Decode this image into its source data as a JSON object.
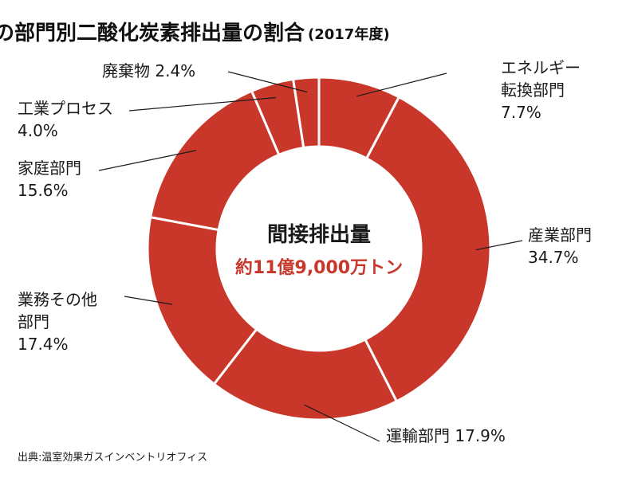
{
  "chart_data": {
    "type": "pie",
    "donut": true,
    "title": "日本の部門別二酸化炭素排出量の割合",
    "subtitle": "(2017年度)",
    "center": {
      "label": "間接排出量",
      "value": "約11億9,000万トン"
    },
    "unit": "%",
    "slices": [
      {
        "name": "エネルギー転換部門",
        "label_lines": [
          "エネルギー",
          "転換部門",
          "7.7%"
        ],
        "value": 7.7
      },
      {
        "name": "産業部門",
        "label_lines": [
          "産業部門",
          "34.7%"
        ],
        "value": 34.7
      },
      {
        "name": "運輸部門",
        "label_lines": [
          "運輸部門 17.9%"
        ],
        "value": 17.9
      },
      {
        "name": "業務その他部門",
        "label_lines": [
          "業務その他",
          "部門",
          "17.4%"
        ],
        "value": 17.4
      },
      {
        "name": "家庭部門",
        "label_lines": [
          "家庭部門",
          "15.6%"
        ],
        "value": 15.6
      },
      {
        "name": "工業プロセス",
        "label_lines": [
          "工業プロセス",
          "4.0%"
        ],
        "value": 4.0
      },
      {
        "name": "廃棄物",
        "label_lines": [
          "廃棄物  2.4%"
        ],
        "value": 2.4
      }
    ],
    "colors": {
      "slice": "#c8372a",
      "separator": "#ffffff",
      "accent_text": "#c8372a"
    },
    "legend": "none",
    "grid": false
  },
  "source": "出典:温室効果ガスインベントリオフィス"
}
